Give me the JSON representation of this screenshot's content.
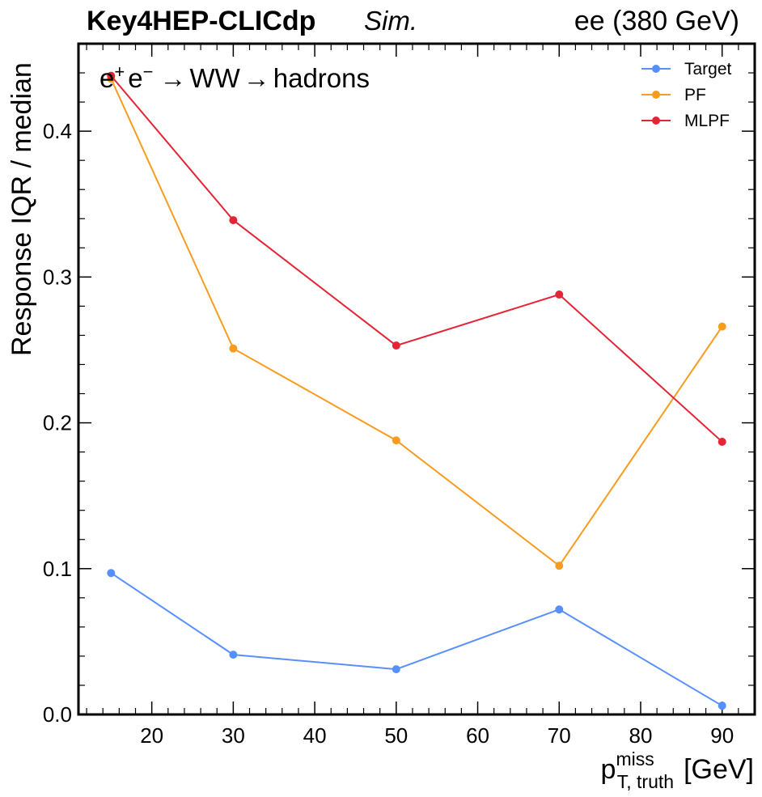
{
  "header": {
    "experiment": "Key4HEP-CLICdp",
    "status": "Sim.",
    "energy": "ee (380 GeV)"
  },
  "chart_data": {
    "type": "line",
    "process_label": {
      "initial": "e",
      "initial_sup_plus": "+",
      "initial_sup_minus": "−",
      "arrow": "→",
      "intermediate": "WW",
      "final": "hadrons"
    },
    "ylabel": "Response IQR / median",
    "xlabel": {
      "base": "p",
      "sup": "miss",
      "sub": "T, truth",
      "unit": "[GeV]"
    },
    "xlim": [
      11,
      94
    ],
    "ylim": [
      0,
      0.46
    ],
    "xticks": [
      20,
      30,
      40,
      50,
      60,
      70,
      80,
      90
    ],
    "yticks": [
      0.0,
      0.1,
      0.2,
      0.3,
      0.4
    ],
    "ytick_labels": [
      "0.0",
      "0.1",
      "0.2",
      "0.3",
      "0.4"
    ],
    "legend_position": "top-right",
    "x": [
      15,
      30,
      50,
      70,
      90
    ],
    "series": [
      {
        "name": "Target",
        "color": "#5790fc",
        "values": [
          0.097,
          0.041,
          0.031,
          0.072,
          0.006
        ]
      },
      {
        "name": "PF",
        "color": "#f89c20",
        "values": [
          0.436,
          0.251,
          0.188,
          0.102,
          0.266
        ]
      },
      {
        "name": "MLPF",
        "color": "#e42536",
        "values": [
          0.438,
          0.339,
          0.253,
          0.288,
          0.187
        ]
      }
    ]
  }
}
